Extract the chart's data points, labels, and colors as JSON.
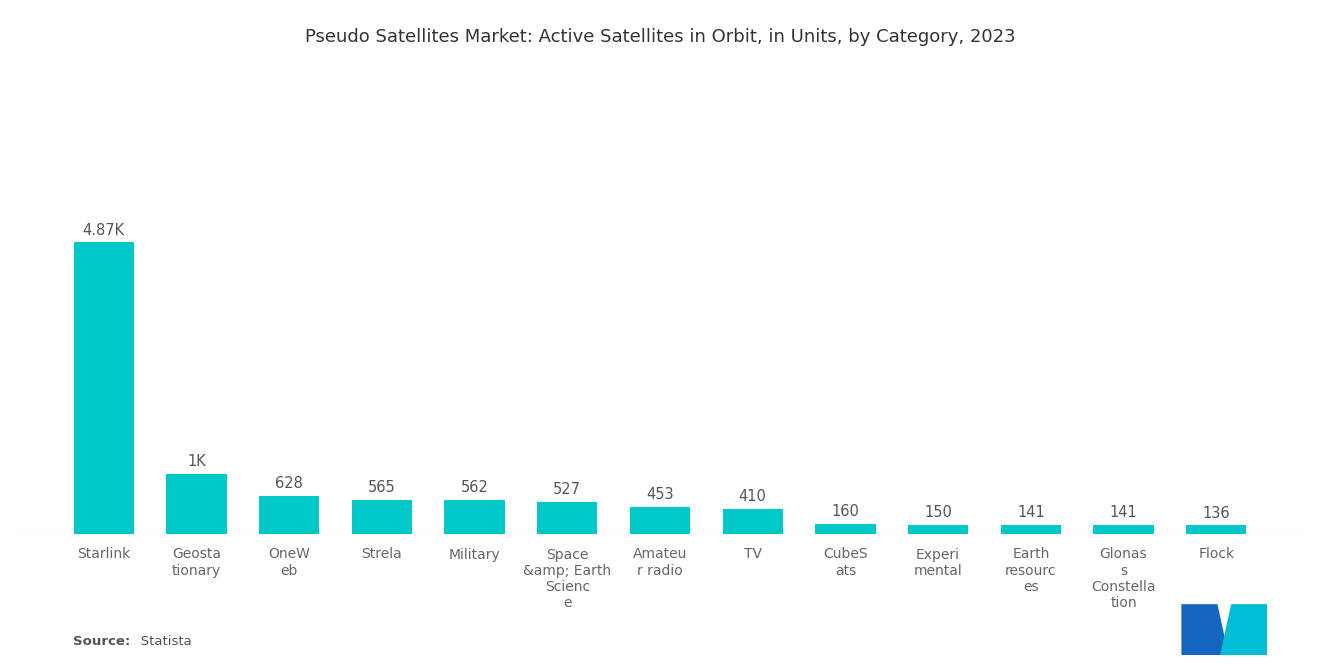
{
  "title": "Pseudo Satellites Market: Active Satellites in Orbit, in Units, by Category, 2023",
  "categories": [
    "Starlink",
    "Geosta\ntionary",
    "OneW\neb",
    "Strela",
    "Military",
    "Space\n&amp; Earth\nScienc\ne",
    "Amateu\nr radio",
    "TV",
    "CubeS\nats",
    "Experi\nmental",
    "Earth\nresourc\nes",
    "Glonas\ns\nConstella\ntion",
    "Flock"
  ],
  "values": [
    4870,
    1000,
    628,
    565,
    562,
    527,
    453,
    410,
    160,
    150,
    141,
    141,
    136
  ],
  "labels": [
    "4.87K",
    "1K",
    "628",
    "565",
    "562",
    "527",
    "453",
    "410",
    "160",
    "150",
    "141",
    "141",
    "136"
  ],
  "bar_color": "#00C8C8",
  "source_bold": "Source:",
  "source_normal": "   Statista",
  "ylim": [
    0,
    7800
  ],
  "background_color": "#ffffff",
  "title_fontsize": 13,
  "label_fontsize": 10.5,
  "tick_fontsize": 10,
  "logo_left_color": "#1565C0",
  "logo_right_color": "#00BCD4"
}
